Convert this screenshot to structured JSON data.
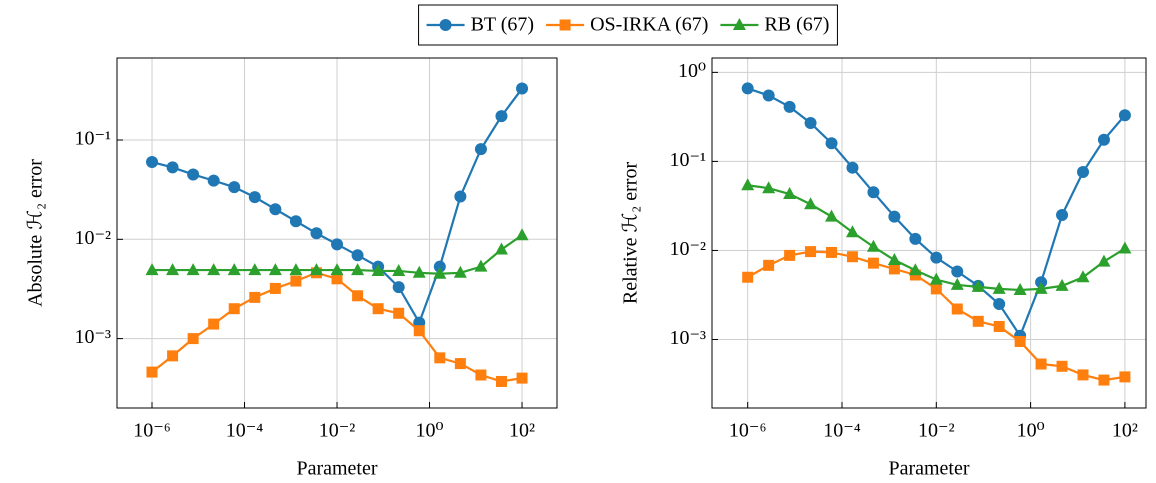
{
  "chart_data": [
    {
      "type": "line",
      "xlabel": "Parameter",
      "ylabel": "Absolute ℋ₂ error",
      "xscale": "log",
      "yscale": "log",
      "grid": true,
      "x": [
        1e-06,
        2.783e-06,
        7.743e-06,
        2.154e-05,
        5.995e-05,
        0.0001668,
        0.0004642,
        0.001292,
        0.003594,
        0.01,
        0.02783,
        0.07743,
        0.2154,
        0.5995,
        1.668,
        4.642,
        12.92,
        35.94,
        100
      ],
      "xlim": [
        1.75e-07,
        570
      ],
      "ylim": [
        0.0002,
        0.67
      ],
      "xticks": [
        {
          "value": 1e-06,
          "label": "10⁻⁶"
        },
        {
          "value": 0.0001,
          "label": "10⁻⁴"
        },
        {
          "value": 0.01,
          "label": "10⁻²"
        },
        {
          "value": 1,
          "label": "10⁰"
        },
        {
          "value": 100,
          "label": "10²"
        }
      ],
      "yticks": [
        {
          "value": 0.001,
          "label": "10⁻³"
        },
        {
          "value": 0.01,
          "label": "10⁻²"
        },
        {
          "value": 0.1,
          "label": "10⁻¹"
        }
      ],
      "series": [
        {
          "name": "BT (67)",
          "color": "#1f77b4",
          "marker": "circle",
          "values": [
            0.06,
            0.053,
            0.045,
            0.039,
            0.0335,
            0.0266,
            0.0201,
            0.0152,
            0.0115,
            0.0089,
            0.0069,
            0.0053,
            0.0033,
            0.00145,
            0.0053,
            0.027,
            0.081,
            0.174,
            0.33
          ]
        },
        {
          "name": "OS-IRKA (67)",
          "color": "#ff7f0e",
          "marker": "square",
          "values": [
            0.00046,
            0.00067,
            0.001,
            0.0014,
            0.002,
            0.0026,
            0.0032,
            0.0038,
            0.0046,
            0.004,
            0.0027,
            0.002,
            0.0018,
            0.0012,
            0.00064,
            0.00056,
            0.00043,
            0.00037,
            0.0004
          ]
        },
        {
          "name": "RB (67)",
          "color": "#2ca02c",
          "marker": "triangle",
          "values": [
            0.0049,
            0.0049,
            0.0049,
            0.0049,
            0.0049,
            0.0049,
            0.0049,
            0.0049,
            0.0049,
            0.0049,
            0.0049,
            0.0048,
            0.0048,
            0.0046,
            0.0045,
            0.0046,
            0.0053,
            0.0079,
            0.011
          ]
        }
      ]
    },
    {
      "type": "line",
      "xlabel": "Parameter",
      "ylabel": "Relative ℋ₂ error",
      "xscale": "log",
      "yscale": "log",
      "grid": true,
      "x": [
        1e-06,
        2.783e-06,
        7.743e-06,
        2.154e-05,
        5.995e-05,
        0.0001668,
        0.0004642,
        0.001292,
        0.003594,
        0.01,
        0.02783,
        0.07743,
        0.2154,
        0.5995,
        1.668,
        4.642,
        12.92,
        35.94,
        100
      ],
      "xlim": [
        1.75e-07,
        280
      ],
      "ylim": [
        0.00017,
        1.45
      ],
      "xticks": [
        {
          "value": 1e-06,
          "label": "10⁻⁶"
        },
        {
          "value": 0.0001,
          "label": "10⁻⁴"
        },
        {
          "value": 0.01,
          "label": "10⁻²"
        },
        {
          "value": 1,
          "label": "10⁰"
        },
        {
          "value": 100,
          "label": "10²"
        }
      ],
      "yticks": [
        {
          "value": 0.001,
          "label": "10⁻³"
        },
        {
          "value": 0.01,
          "label": "10⁻²"
        },
        {
          "value": 0.1,
          "label": "10⁻¹"
        },
        {
          "value": 1,
          "label": "10⁰"
        }
      ],
      "series": [
        {
          "color": "#1f77b4",
          "marker": "circle",
          "values": [
            0.66,
            0.55,
            0.41,
            0.27,
            0.16,
            0.085,
            0.045,
            0.024,
            0.0135,
            0.0083,
            0.0058,
            0.004,
            0.0025,
            0.0011,
            0.0044,
            0.025,
            0.076,
            0.175,
            0.33
          ]
        },
        {
          "color": "#ff7f0e",
          "marker": "square",
          "values": [
            0.005,
            0.0068,
            0.0088,
            0.0097,
            0.0095,
            0.0085,
            0.0072,
            0.0062,
            0.0053,
            0.0037,
            0.0022,
            0.0016,
            0.0014,
            0.00095,
            0.00053,
            0.0005,
            0.0004,
            0.00035,
            0.00038
          ]
        },
        {
          "color": "#2ca02c",
          "marker": "triangle",
          "values": [
            0.054,
            0.05,
            0.043,
            0.033,
            0.024,
            0.016,
            0.011,
            0.0078,
            0.006,
            0.0047,
            0.0041,
            0.0039,
            0.0037,
            0.0036,
            0.0037,
            0.004,
            0.005,
            0.0075,
            0.0105
          ]
        }
      ]
    }
  ]
}
